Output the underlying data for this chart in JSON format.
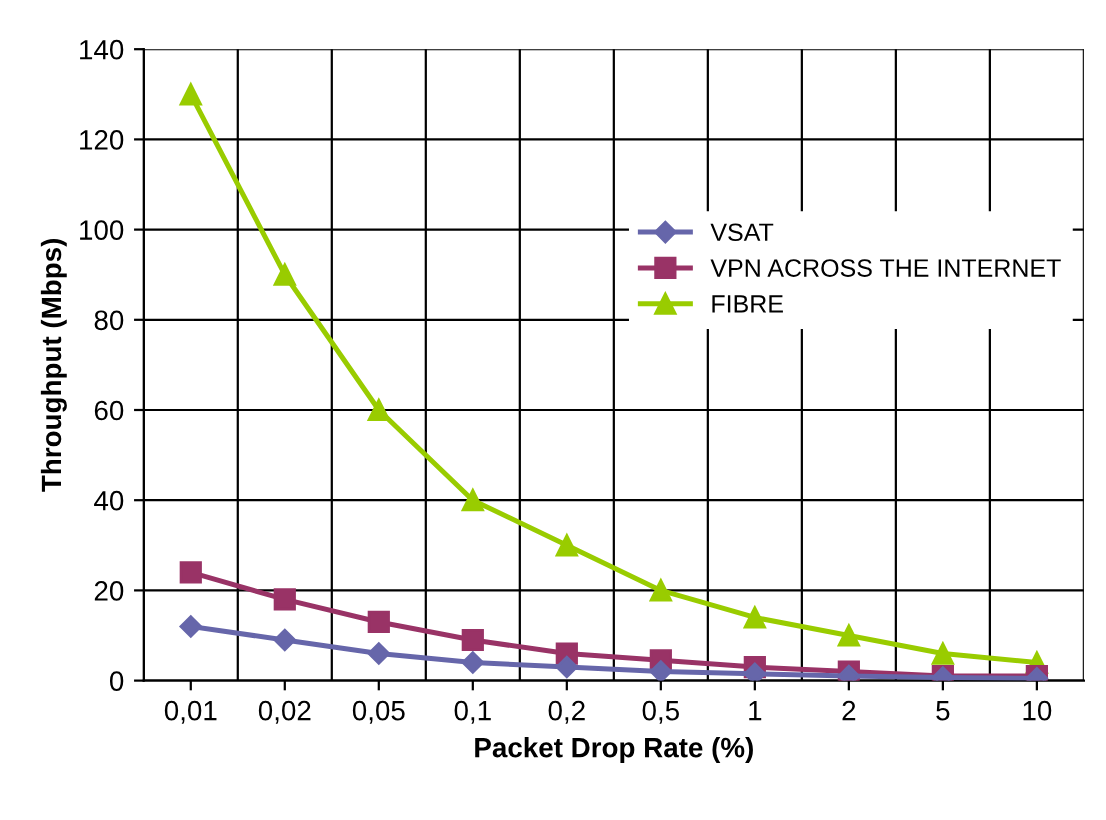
{
  "chart_data": {
    "type": "line",
    "xlabel": "Packet Drop Rate (%)",
    "ylabel": "Throughput (Mbps)",
    "categories": [
      "0,01",
      "0,02",
      "0,05",
      "0,1",
      "0,2",
      "0,5",
      "1",
      "2",
      "5",
      "10"
    ],
    "ylim": [
      0,
      140
    ],
    "yticks": [
      0,
      20,
      40,
      60,
      80,
      100,
      120,
      140
    ],
    "grid": true,
    "legend": "right",
    "series": [
      {
        "name": "VSAT",
        "color": "#6666aa",
        "marker": "diamond",
        "values": [
          12,
          9,
          6,
          4,
          3,
          2,
          1.5,
          1,
          0.7,
          0.5
        ]
      },
      {
        "name": "VPN ACROSS THE INTERNET",
        "color": "#993366",
        "marker": "square",
        "values": [
          24,
          18,
          13,
          9,
          6,
          4.5,
          3,
          2,
          1,
          1
        ]
      },
      {
        "name": "FIBRE",
        "color": "#99cc00",
        "marker": "triangle",
        "values": [
          130,
          90,
          60,
          40,
          30,
          20,
          14,
          10,
          6,
          4
        ]
      }
    ]
  }
}
